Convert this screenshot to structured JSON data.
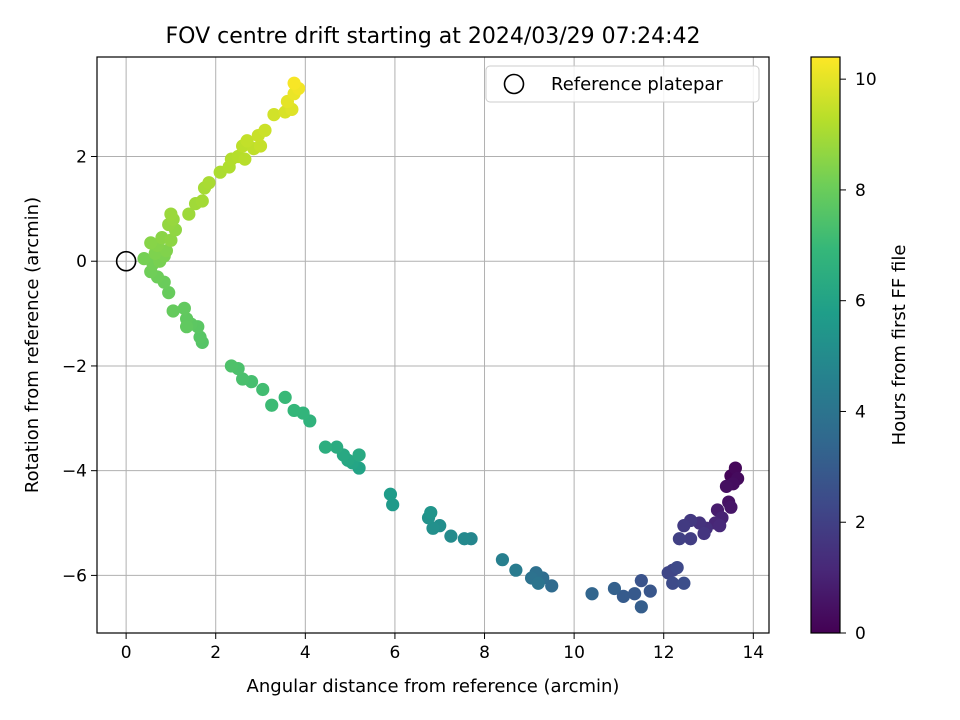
{
  "chart_data": {
    "type": "scatter",
    "title": "FOV centre drift starting at 2024/03/29 07:24:42",
    "xlabel": "Angular distance from reference (arcmin)",
    "ylabel": "Rotation from reference (arcmin)",
    "xlim": [
      -0.65,
      14.35
    ],
    "ylim": [
      -7.1,
      3.9
    ],
    "xticks": [
      0,
      2,
      4,
      6,
      8,
      10,
      12,
      14
    ],
    "yticks": [
      -6,
      -4,
      -2,
      0,
      2
    ],
    "grid": true,
    "legend": {
      "placement": "top-right",
      "entries": [
        {
          "label": "Reference platepar",
          "marker": "open-circle",
          "x": 0,
          "y": 0
        }
      ]
    },
    "colorbar": {
      "label": "Hours from first FF file",
      "range": [
        0,
        10.4
      ],
      "ticks": [
        0,
        2,
        4,
        6,
        8,
        10
      ],
      "colormap": [
        "#440154",
        "#482878",
        "#3e4989",
        "#31688e",
        "#26828e",
        "#1f9e89",
        "#35b779",
        "#6ece58",
        "#b5de2b",
        "#fde725"
      ]
    },
    "points": [
      {
        "x": 13.5,
        "y": -4.1,
        "t": 0.1
      },
      {
        "x": 13.6,
        "y": -3.95,
        "t": 0.2
      },
      {
        "x": 13.65,
        "y": -4.15,
        "t": 0.3
      },
      {
        "x": 13.55,
        "y": -4.25,
        "t": 0.35
      },
      {
        "x": 13.4,
        "y": -4.3,
        "t": 0.4
      },
      {
        "x": 13.45,
        "y": -4.6,
        "t": 0.5
      },
      {
        "x": 13.5,
        "y": -4.7,
        "t": 0.6
      },
      {
        "x": 13.2,
        "y": -4.75,
        "t": 0.8
      },
      {
        "x": 13.3,
        "y": -4.9,
        "t": 1.0
      },
      {
        "x": 13.15,
        "y": -5.0,
        "t": 1.1
      },
      {
        "x": 13.25,
        "y": -5.05,
        "t": 1.2
      },
      {
        "x": 12.95,
        "y": -5.1,
        "t": 1.4
      },
      {
        "x": 12.8,
        "y": -5.0,
        "t": 1.5
      },
      {
        "x": 12.9,
        "y": -5.2,
        "t": 1.6
      },
      {
        "x": 12.6,
        "y": -4.95,
        "t": 1.7
      },
      {
        "x": 12.45,
        "y": -5.05,
        "t": 1.8
      },
      {
        "x": 12.6,
        "y": -5.3,
        "t": 1.9
      },
      {
        "x": 12.35,
        "y": -5.3,
        "t": 2.0
      },
      {
        "x": 12.2,
        "y": -5.9,
        "t": 2.1
      },
      {
        "x": 12.1,
        "y": -5.95,
        "t": 2.2
      },
      {
        "x": 12.3,
        "y": -5.85,
        "t": 2.3
      },
      {
        "x": 12.2,
        "y": -6.15,
        "t": 2.4
      },
      {
        "x": 12.45,
        "y": -6.15,
        "t": 2.5
      },
      {
        "x": 11.5,
        "y": -6.1,
        "t": 2.7
      },
      {
        "x": 11.7,
        "y": -6.3,
        "t": 2.8
      },
      {
        "x": 11.35,
        "y": -6.35,
        "t": 2.9
      },
      {
        "x": 11.1,
        "y": -6.4,
        "t": 3.0
      },
      {
        "x": 11.5,
        "y": -6.6,
        "t": 3.1
      },
      {
        "x": 10.9,
        "y": -6.25,
        "t": 3.2
      },
      {
        "x": 10.4,
        "y": -6.35,
        "t": 3.4
      },
      {
        "x": 9.5,
        "y": -6.2,
        "t": 3.6
      },
      {
        "x": 9.3,
        "y": -6.05,
        "t": 3.7
      },
      {
        "x": 9.15,
        "y": -5.95,
        "t": 3.8
      },
      {
        "x": 9.05,
        "y": -6.05,
        "t": 3.9
      },
      {
        "x": 9.2,
        "y": -6.15,
        "t": 4.0
      },
      {
        "x": 8.7,
        "y": -5.9,
        "t": 4.3
      },
      {
        "x": 8.4,
        "y": -5.7,
        "t": 4.5
      },
      {
        "x": 7.7,
        "y": -5.3,
        "t": 4.8
      },
      {
        "x": 7.55,
        "y": -5.3,
        "t": 4.9
      },
      {
        "x": 7.25,
        "y": -5.25,
        "t": 5.0
      },
      {
        "x": 7.0,
        "y": -5.05,
        "t": 5.1
      },
      {
        "x": 6.85,
        "y": -5.1,
        "t": 5.2
      },
      {
        "x": 6.75,
        "y": -4.9,
        "t": 5.3
      },
      {
        "x": 6.8,
        "y": -4.8,
        "t": 5.4
      },
      {
        "x": 5.95,
        "y": -4.65,
        "t": 5.6
      },
      {
        "x": 5.9,
        "y": -4.45,
        "t": 5.7
      },
      {
        "x": 5.2,
        "y": -3.95,
        "t": 6.0
      },
      {
        "x": 5.05,
        "y": -3.85,
        "t": 6.1
      },
      {
        "x": 4.95,
        "y": -3.8,
        "t": 6.2
      },
      {
        "x": 4.85,
        "y": -3.7,
        "t": 6.25
      },
      {
        "x": 5.2,
        "y": -3.7,
        "t": 6.3
      },
      {
        "x": 4.7,
        "y": -3.55,
        "t": 6.4
      },
      {
        "x": 4.45,
        "y": -3.55,
        "t": 6.5
      },
      {
        "x": 4.1,
        "y": -3.05,
        "t": 6.7
      },
      {
        "x": 3.95,
        "y": -2.9,
        "t": 6.8
      },
      {
        "x": 3.75,
        "y": -2.85,
        "t": 6.9
      },
      {
        "x": 3.55,
        "y": -2.6,
        "t": 7.0
      },
      {
        "x": 3.25,
        "y": -2.75,
        "t": 7.1
      },
      {
        "x": 3.05,
        "y": -2.45,
        "t": 7.2
      },
      {
        "x": 2.8,
        "y": -2.3,
        "t": 7.3
      },
      {
        "x": 2.6,
        "y": -2.25,
        "t": 7.35
      },
      {
        "x": 2.5,
        "y": -2.05,
        "t": 7.4
      },
      {
        "x": 2.35,
        "y": -2.0,
        "t": 7.45
      },
      {
        "x": 1.7,
        "y": -1.55,
        "t": 7.6
      },
      {
        "x": 1.65,
        "y": -1.45,
        "t": 7.65
      },
      {
        "x": 1.6,
        "y": -1.25,
        "t": 7.7
      },
      {
        "x": 1.45,
        "y": -1.2,
        "t": 7.75
      },
      {
        "x": 1.35,
        "y": -1.1,
        "t": 7.8
      },
      {
        "x": 1.35,
        "y": -1.25,
        "t": 7.82
      },
      {
        "x": 1.3,
        "y": -0.9,
        "t": 7.85
      },
      {
        "x": 1.05,
        "y": -0.95,
        "t": 7.9
      },
      {
        "x": 0.95,
        "y": -0.6,
        "t": 7.95
      },
      {
        "x": 0.85,
        "y": -0.4,
        "t": 8.0
      },
      {
        "x": 0.7,
        "y": -0.3,
        "t": 8.05
      },
      {
        "x": 0.55,
        "y": -0.2,
        "t": 8.1
      },
      {
        "x": 0.6,
        "y": -0.05,
        "t": 8.15
      },
      {
        "x": 0.4,
        "y": 0.05,
        "t": 8.2
      },
      {
        "x": 0.75,
        "y": 0.0,
        "t": 8.25
      },
      {
        "x": 0.85,
        "y": 0.1,
        "t": 8.3
      },
      {
        "x": 0.65,
        "y": 0.15,
        "t": 8.35
      },
      {
        "x": 0.9,
        "y": 0.2,
        "t": 8.4
      },
      {
        "x": 0.7,
        "y": 0.3,
        "t": 8.45
      },
      {
        "x": 0.55,
        "y": 0.35,
        "t": 8.5
      },
      {
        "x": 0.8,
        "y": 0.45,
        "t": 8.55
      },
      {
        "x": 1.0,
        "y": 0.4,
        "t": 8.6
      },
      {
        "x": 1.1,
        "y": 0.6,
        "t": 8.65
      },
      {
        "x": 0.95,
        "y": 0.7,
        "t": 8.7
      },
      {
        "x": 1.05,
        "y": 0.8,
        "t": 8.75
      },
      {
        "x": 1.0,
        "y": 0.9,
        "t": 8.8
      },
      {
        "x": 1.4,
        "y": 0.9,
        "t": 8.85
      },
      {
        "x": 1.55,
        "y": 1.1,
        "t": 8.9
      },
      {
        "x": 1.7,
        "y": 1.15,
        "t": 8.95
      },
      {
        "x": 1.75,
        "y": 1.4,
        "t": 9.0
      },
      {
        "x": 1.85,
        "y": 1.5,
        "t": 9.05
      },
      {
        "x": 2.1,
        "y": 1.7,
        "t": 9.1
      },
      {
        "x": 2.3,
        "y": 1.8,
        "t": 9.15
      },
      {
        "x": 2.35,
        "y": 1.95,
        "t": 9.2
      },
      {
        "x": 2.5,
        "y": 2.0,
        "t": 9.25
      },
      {
        "x": 2.65,
        "y": 1.95,
        "t": 9.3
      },
      {
        "x": 2.6,
        "y": 2.2,
        "t": 9.35
      },
      {
        "x": 2.85,
        "y": 2.15,
        "t": 9.4
      },
      {
        "x": 2.7,
        "y": 2.3,
        "t": 9.45
      },
      {
        "x": 3.0,
        "y": 2.2,
        "t": 9.5
      },
      {
        "x": 2.95,
        "y": 2.4,
        "t": 9.55
      },
      {
        "x": 3.1,
        "y": 2.5,
        "t": 9.6
      },
      {
        "x": 3.3,
        "y": 2.8,
        "t": 9.7
      },
      {
        "x": 3.55,
        "y": 2.85,
        "t": 9.8
      },
      {
        "x": 3.7,
        "y": 2.9,
        "t": 9.9
      },
      {
        "x": 3.6,
        "y": 3.05,
        "t": 10.0
      },
      {
        "x": 3.75,
        "y": 3.2,
        "t": 10.1
      },
      {
        "x": 3.85,
        "y": 3.3,
        "t": 10.2
      },
      {
        "x": 3.75,
        "y": 3.4,
        "t": 10.3
      }
    ]
  }
}
